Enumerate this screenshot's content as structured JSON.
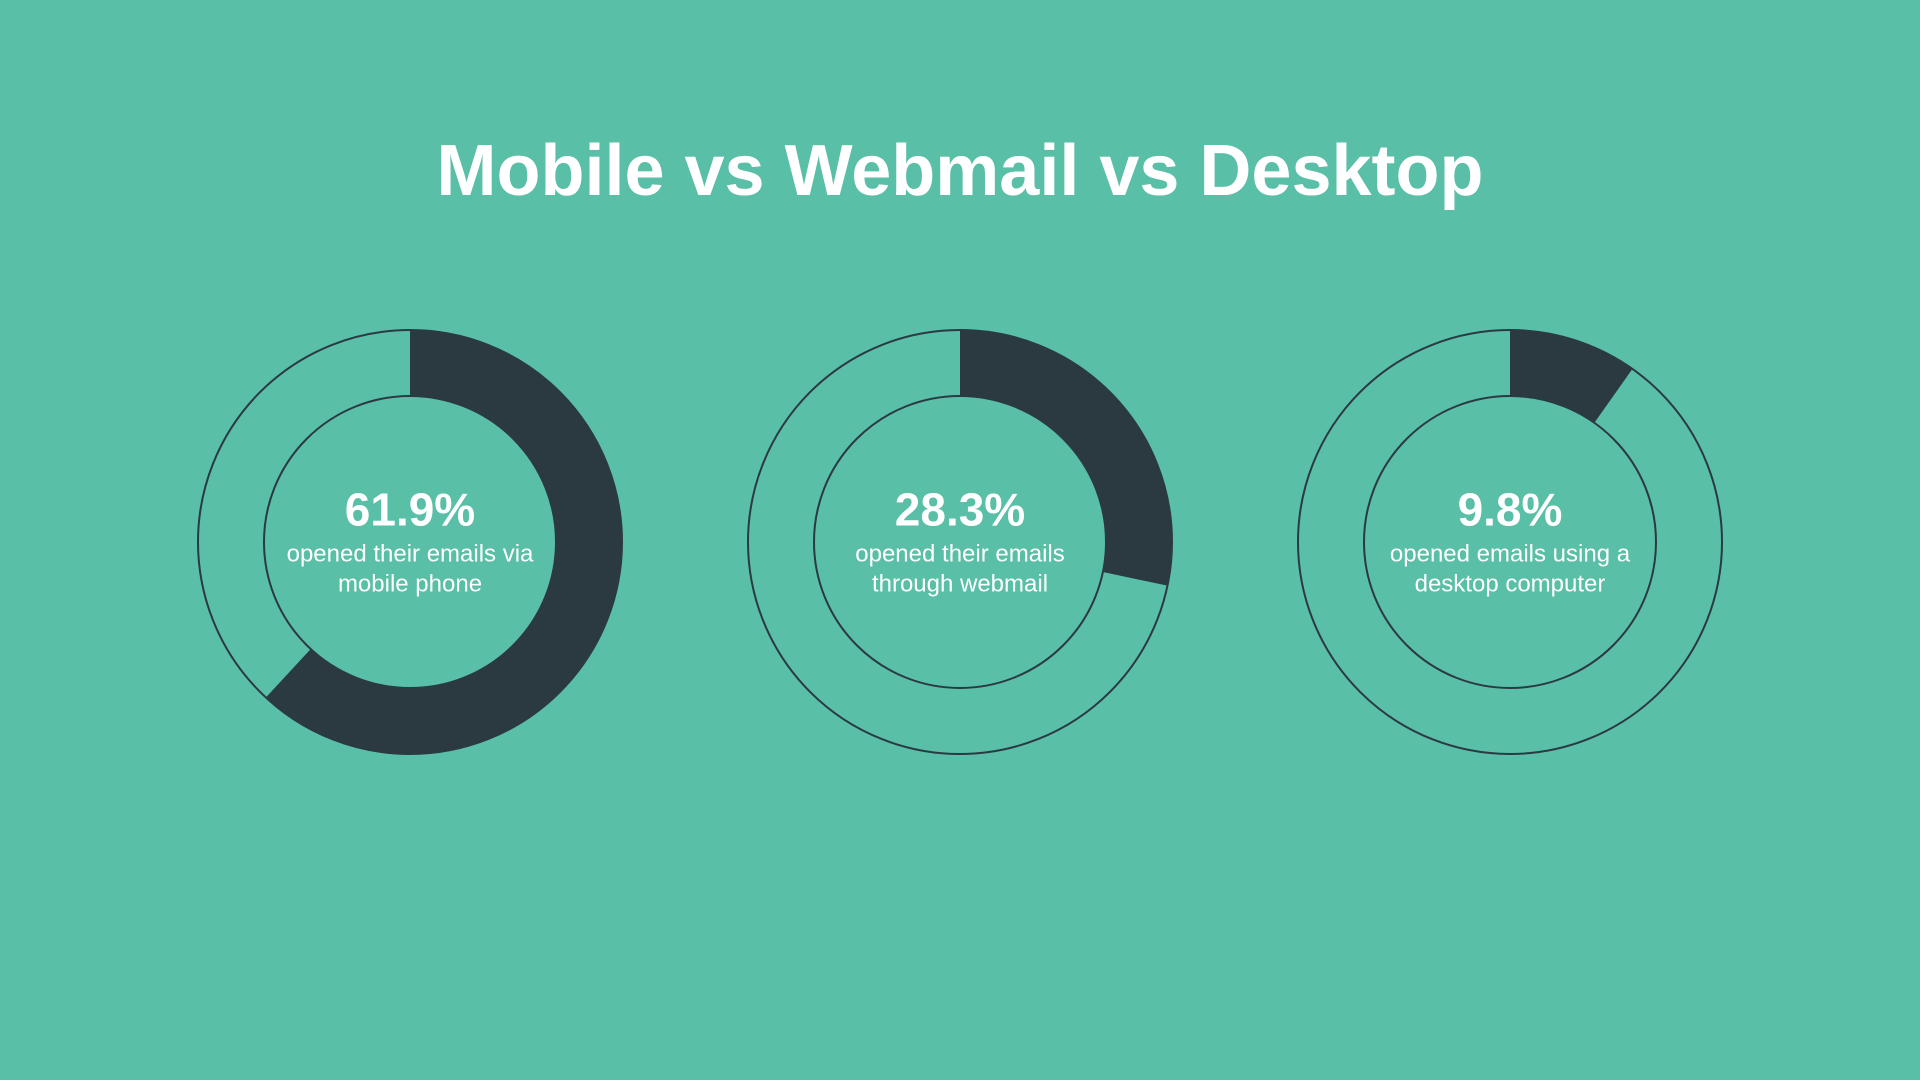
{
  "title": "Mobile vs Webmail vs Desktop",
  "background_color": "#5abfa7",
  "title_color": "#ffffff",
  "title_fontsize": 72,
  "title_fontweight": 700,
  "charts": [
    {
      "percent_value": 61.9,
      "percent_text": "61.9%",
      "label": "opened their emails via mobile phone",
      "type": "donut",
      "size": 440,
      "outer_radius": 212,
      "inner_radius": 146,
      "stroke_color": "#2b3a40",
      "stroke_width": 2,
      "fill_color": "#2b3a40",
      "empty_fill": "#5abfa7",
      "text_color": "#ffffff",
      "percent_fontsize": 46,
      "label_fontsize": 24,
      "start_angle_deg": 0
    },
    {
      "percent_value": 28.3,
      "percent_text": "28.3%",
      "label": "opened their emails through webmail",
      "type": "donut",
      "size": 440,
      "outer_radius": 212,
      "inner_radius": 146,
      "stroke_color": "#2b3a40",
      "stroke_width": 2,
      "fill_color": "#2b3a40",
      "empty_fill": "#5abfa7",
      "text_color": "#ffffff",
      "percent_fontsize": 46,
      "label_fontsize": 24,
      "start_angle_deg": 0
    },
    {
      "percent_value": 9.8,
      "percent_text": "9.8%",
      "label": "opened emails using a desktop computer",
      "type": "donut",
      "size": 440,
      "outer_radius": 212,
      "inner_radius": 146,
      "stroke_color": "#2b3a40",
      "stroke_width": 2,
      "fill_color": "#2b3a40",
      "empty_fill": "#5abfa7",
      "text_color": "#ffffff",
      "percent_fontsize": 46,
      "label_fontsize": 24,
      "start_angle_deg": 0
    }
  ]
}
